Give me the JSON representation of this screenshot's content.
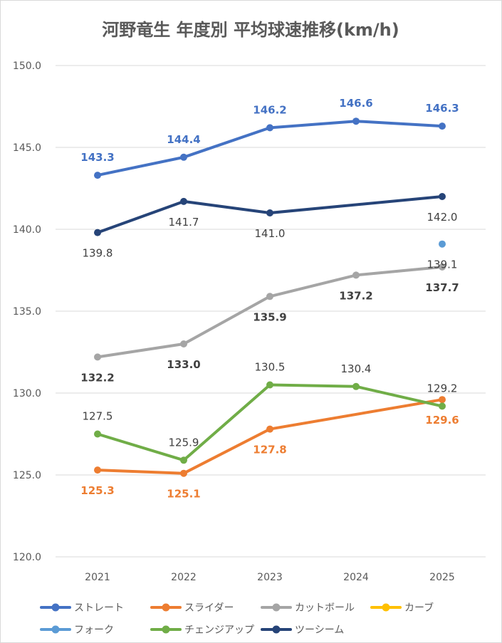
{
  "chart_data": {
    "type": "line",
    "title": "河野竜生 年度別 平均球速推移(km/h)",
    "categories": [
      "2021",
      "2022",
      "2023",
      "2024",
      "2025"
    ],
    "ylim": [
      120.0,
      150.0
    ],
    "yticks": [
      "120.0",
      "125.0",
      "130.0",
      "135.0",
      "140.0",
      "145.0",
      "150.0"
    ],
    "grid": true,
    "legend_position": "bottom",
    "series": [
      {
        "name": "ストレート",
        "color": "#4472C4",
        "values": [
          143.3,
          144.4,
          146.2,
          146.6,
          146.3
        ],
        "labels": [
          "143.3",
          "144.4",
          "146.2",
          "146.6",
          "146.3"
        ],
        "label_pos": "above",
        "label_bold": false
      },
      {
        "name": "スライダー",
        "color": "#ED7D31",
        "values": [
          125.3,
          125.1,
          127.8,
          null,
          129.6
        ],
        "labels": [
          "125.3",
          "125.1",
          "127.8",
          "",
          "129.6"
        ],
        "label_pos": "below",
        "label_bold": false
      },
      {
        "name": "カットボール",
        "color": "#A5A5A5",
        "values": [
          132.2,
          133.0,
          135.9,
          137.2,
          137.7
        ],
        "labels": [
          "132.2",
          "133.0",
          "135.9",
          "137.2",
          "137.7"
        ],
        "label_pos": "below",
        "label_bold": true
      },
      {
        "name": "カーブ",
        "color": "#FFC000",
        "values": [
          null,
          null,
          null,
          null,
          null
        ],
        "labels": [
          "",
          "",
          "",
          "",
          ""
        ],
        "label_pos": "above",
        "label_bold": false
      },
      {
        "name": "フォーク",
        "color": "#5B9BD5",
        "values": [
          null,
          null,
          null,
          null,
          139.1
        ],
        "labels": [
          "",
          "",
          "",
          "",
          "139.1"
        ],
        "label_pos": "below",
        "label_bold": false
      },
      {
        "name": "チェンジアップ",
        "color": "#70AD47",
        "values": [
          127.5,
          125.9,
          130.5,
          130.4,
          129.2
        ],
        "labels": [
          "127.5",
          "125.9",
          "130.5",
          "130.4",
          "129.2"
        ],
        "label_pos": "above",
        "label_bold": false
      },
      {
        "name": "ツーシーム",
        "color": "#264478",
        "values": [
          139.8,
          141.7,
          141.0,
          null,
          142.0
        ],
        "labels": [
          "139.8",
          "141.7",
          "141.0",
          "",
          "142.0"
        ],
        "label_pos": "below",
        "label_bold": false
      }
    ]
  }
}
